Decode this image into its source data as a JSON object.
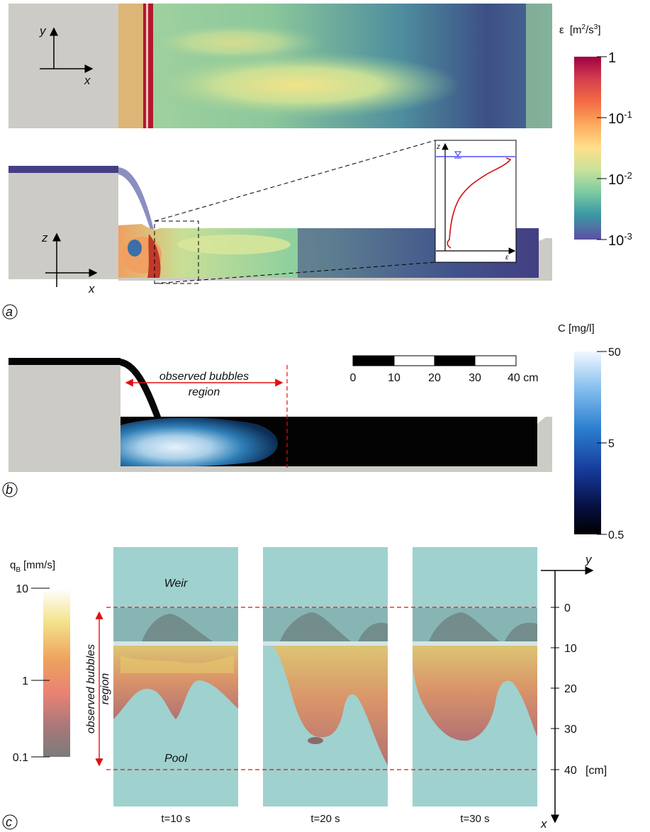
{
  "panel_a": {
    "label": "a",
    "top_axes": {
      "y": "y",
      "x": "x"
    },
    "side_axes": {
      "z": "z",
      "x": "x"
    },
    "inset_axes": {
      "z": "z",
      "x": "ε"
    },
    "colorbar": {
      "label_symbol": "ε",
      "label_unit_pre": "[m",
      "label_unit_sup1": "2",
      "label_unit_mid": "/s",
      "label_unit_sup2": "3",
      "label_unit_post": "]",
      "ticks": [
        {
          "base": "1",
          "exp": ""
        },
        {
          "base": "10",
          "exp": "-1"
        },
        {
          "base": "10",
          "exp": "-2"
        },
        {
          "base": "10",
          "exp": "-3"
        }
      ]
    }
  },
  "panel_b": {
    "label": "b",
    "bubbles_label_1": "observed bubbles",
    "bubbles_label_2": "region",
    "scalebar": {
      "ticks": [
        "0",
        "10",
        "20",
        "30"
      ],
      "last": "40 cm"
    },
    "colorbar": {
      "label": "C [mg/l]",
      "ticks": [
        "50",
        "5",
        "0.5"
      ]
    }
  },
  "panel_c": {
    "label": "c",
    "colorbar": {
      "label_main": "q",
      "label_sub": "B",
      "label_unit": "[mm/s]",
      "ticks": [
        "10",
        "1",
        "0.1"
      ]
    },
    "weir_label": "Weir",
    "pool_label": "Pool",
    "bubbles_label_1": "observed bubbles",
    "bubbles_label_2": "region",
    "times": [
      "t=10 s",
      "t=20 s",
      "t=30 s"
    ],
    "axis": {
      "y": "y",
      "x": "x",
      "ticks": [
        "0",
        "10",
        "20",
        "30"
      ],
      "last_tick": "40",
      "unit": "[cm]"
    }
  }
}
